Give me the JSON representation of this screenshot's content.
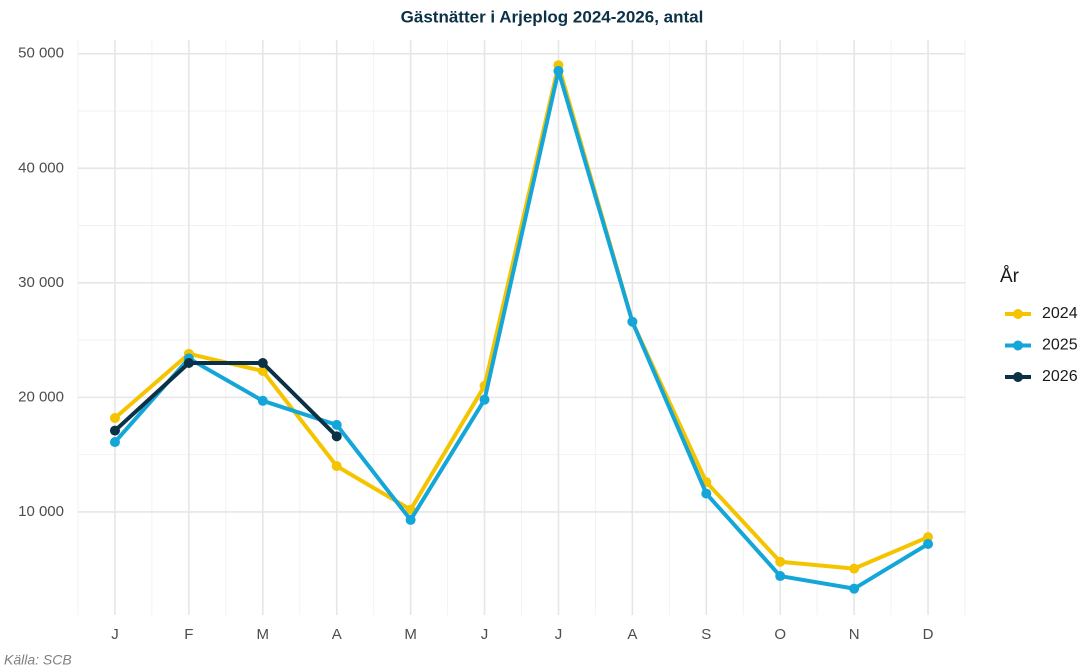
{
  "chart_data": {
    "type": "line",
    "title": "Gästnätter i Arjeplog 2024-2026, antal",
    "caption": "Källa: SCB",
    "legend_title": "År",
    "legend_position": "right",
    "grid": true,
    "categories": [
      "J",
      "F",
      "M",
      "A",
      "M",
      "J",
      "J",
      "A",
      "S",
      "O",
      "N",
      "D"
    ],
    "series": [
      {
        "name": "2024",
        "color": "#f5c400",
        "values": [
          18200,
          23800,
          22300,
          14000,
          10200,
          21000,
          49000,
          26600,
          12600,
          5650,
          5050,
          7800
        ]
      },
      {
        "name": "2025",
        "color": "#14a6d8",
        "values": [
          16100,
          23400,
          19700,
          17600,
          9300,
          19800,
          48500,
          26600,
          11600,
          4400,
          3300,
          7200
        ]
      },
      {
        "name": "2026",
        "color": "#0b3147",
        "values": [
          17100,
          23000,
          23000,
          16600,
          null,
          null,
          null,
          null,
          null,
          null,
          null,
          null
        ]
      }
    ],
    "ylim": [
      1000,
      51200
    ],
    "yticks": [
      {
        "value": 10000,
        "label": "10 000"
      },
      {
        "value": 20000,
        "label": "20 000"
      },
      {
        "value": 30000,
        "label": "30 000"
      },
      {
        "value": 40000,
        "label": "40 000"
      },
      {
        "value": 50000,
        "label": "50 000"
      }
    ]
  }
}
